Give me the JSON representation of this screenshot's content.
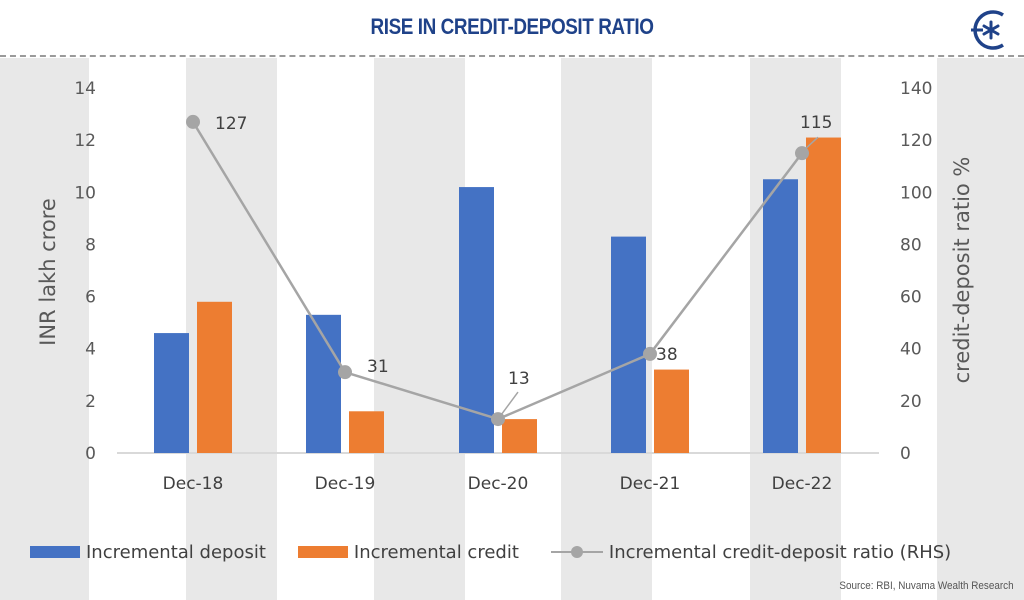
{
  "header": {
    "title": "RISE IN CREDIT-DEPOSIT RATIO",
    "logo_icon": "nuvama-logo-icon"
  },
  "colors": {
    "title": "#1f4289",
    "deposit": "#4472c4",
    "credit": "#ed7d31",
    "ratio": "#a5a5a5",
    "band": "#e8e8e8"
  },
  "axes": {
    "left_label": "INR lakh crore",
    "right_label": "credit-deposit ratio %",
    "left_ticks": [
      "0",
      "2",
      "4",
      "6",
      "8",
      "10",
      "12",
      "14"
    ],
    "right_ticks": [
      "0",
      "20",
      "40",
      "60",
      "80",
      "100",
      "120",
      "140"
    ]
  },
  "legend": {
    "deposit": "Incremental deposit",
    "credit": "Incremental credit",
    "ratio": "Incremental credit-deposit ratio (RHS)"
  },
  "source": "Source: RBI, Nuvama Wealth Research",
  "chart_data": {
    "type": "bar",
    "title": "RISE IN CREDIT-DEPOSIT RATIO",
    "categories": [
      "Dec-18",
      "Dec-19",
      "Dec-20",
      "Dec-21",
      "Dec-22"
    ],
    "series": [
      {
        "name": "Incremental deposit",
        "type": "bar",
        "axis": "left",
        "values": [
          4.6,
          5.3,
          10.2,
          8.3,
          10.5
        ]
      },
      {
        "name": "Incremental credit",
        "type": "bar",
        "axis": "left",
        "values": [
          5.8,
          1.6,
          1.3,
          3.2,
          12.1
        ]
      },
      {
        "name": "Incremental credit-deposit ratio (RHS)",
        "type": "line",
        "axis": "right",
        "values": [
          127,
          31,
          13,
          38,
          115
        ],
        "labels": [
          "127",
          "31",
          "13",
          "38",
          "115"
        ]
      }
    ],
    "xlabel": "",
    "ylabel": "INR lakh crore",
    "ylabel_right": "credit-deposit ratio %",
    "ylim": [
      0,
      14
    ],
    "ylim_right": [
      0,
      140
    ],
    "grid": false,
    "legend_position": "bottom"
  }
}
